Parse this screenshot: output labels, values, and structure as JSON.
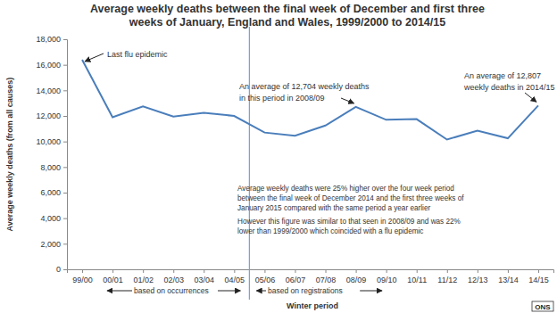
{
  "chart_data": {
    "type": "line",
    "title": [
      "Average weekly deaths between the final week of December and first three",
      "weeks of January, England and Wales, 1999/2000 to 2014/15"
    ],
    "y_label": "Average weekly deaths (from all causes)",
    "x_label": "Winter period",
    "categories": [
      "99/00",
      "00/01",
      "01/02",
      "02/03",
      "03/04",
      "04/05",
      "05/06",
      "06/07",
      "07/08",
      "08/09",
      "09/10",
      "10/11",
      "11/12",
      "12/13",
      "13/14",
      "14/15"
    ],
    "values": [
      16400,
      11900,
      12750,
      11950,
      12250,
      12000,
      10700,
      10450,
      11250,
      12704,
      11700,
      11750,
      10150,
      10850,
      10250,
      12807
    ],
    "color": "#4a7ebb",
    "marker": "none",
    "grid": false,
    "ylim": [
      0,
      18000
    ],
    "yticks": [
      0,
      {
        "value": 2000,
        "label": "2,000"
      },
      {
        "value": 4000,
        "label": "4,000"
      },
      {
        "value": 6000,
        "label": "6,000"
      },
      {
        "value": 8000,
        "label": "8,000"
      },
      {
        "value": 10000,
        "label": "10,000"
      },
      {
        "value": 12000,
        "label": "12,000"
      },
      {
        "value": 14000,
        "label": "14,000"
      },
      {
        "value": 16000,
        "label": "16,000"
      },
      {
        "value": 18000,
        "label": "18,000"
      }
    ],
    "annotations": [
      {
        "text": [
          "Last flu epidemic"
        ]
      },
      {
        "text": [
          "An average of 12,704 weekly deaths",
          "in this period in 2008/09"
        ]
      },
      {
        "text": [
          "An average of 12,807",
          "weekly deaths in 2014/15"
        ]
      },
      {
        "text": [
          "Average weekly deaths were 25% higher over the four week period",
          "between the final week of December 2014 and the first three weeks  of",
          "January 2015 compared with the same period a year earlier"
        ]
      },
      {
        "text": [
          "However this figure was similar to that seen in 2008/09 and was 22%",
          "lower than 1999/2000 which coincided with a flu epidemic"
        ]
      }
    ],
    "period_labels": [
      "based on occurrences",
      "based on registrations"
    ],
    "source": "ONS"
  }
}
